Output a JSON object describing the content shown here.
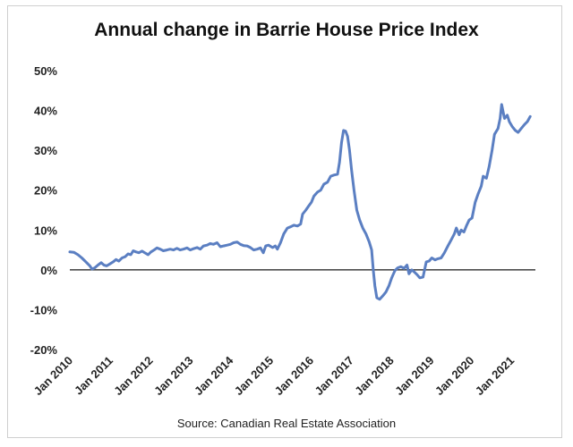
{
  "chart_data": {
    "type": "line",
    "title": "Annual change in Barrie House Price Index",
    "source": "Source: Canadian Real Estate Association",
    "xlabel": "",
    "ylabel": "",
    "ylim": [
      -0.2,
      0.5
    ],
    "xlim": [
      2010,
      2021.6
    ],
    "yticks": [
      {
        "value": 0.5,
        "label": "50%"
      },
      {
        "value": 0.4,
        "label": "40%"
      },
      {
        "value": 0.3,
        "label": "30%"
      },
      {
        "value": 0.2,
        "label": "20%"
      },
      {
        "value": 0.1,
        "label": "10%"
      },
      {
        "value": 0.0,
        "label": "0%"
      },
      {
        "value": -0.1,
        "label": "-10%"
      },
      {
        "value": -0.2,
        "label": "-20%"
      }
    ],
    "xticks": [
      {
        "value": 2010,
        "label": "Jan 2010"
      },
      {
        "value": 2011,
        "label": "Jan 2011"
      },
      {
        "value": 2012,
        "label": "Jan 2012"
      },
      {
        "value": 2013,
        "label": "Jan 2013"
      },
      {
        "value": 2014,
        "label": "Jan 2014"
      },
      {
        "value": 2015,
        "label": "Jan 2015"
      },
      {
        "value": 2016,
        "label": "Jan 2016"
      },
      {
        "value": 2017,
        "label": "Jan 2017"
      },
      {
        "value": 2018,
        "label": "Jan 2018"
      },
      {
        "value": 2019,
        "label": "Jan 2019"
      },
      {
        "value": 2020,
        "label": "Jan 2020"
      },
      {
        "value": 2021,
        "label": "Jan 2021"
      }
    ],
    "series": [
      {
        "name": "Annual change",
        "color": "#5b7fc2",
        "points": [
          [
            2010.0,
            0.045
          ],
          [
            2010.1,
            0.044
          ],
          [
            2010.2,
            0.038
          ],
          [
            2010.3,
            0.03
          ],
          [
            2010.4,
            0.02
          ],
          [
            2010.5,
            0.01
          ],
          [
            2010.55,
            0.002
          ],
          [
            2010.62,
            0.005
          ],
          [
            2010.7,
            0.012
          ],
          [
            2010.78,
            0.018
          ],
          [
            2010.85,
            0.012
          ],
          [
            2010.92,
            0.01
          ],
          [
            2011.0,
            0.015
          ],
          [
            2011.08,
            0.02
          ],
          [
            2011.15,
            0.026
          ],
          [
            2011.22,
            0.022
          ],
          [
            2011.3,
            0.03
          ],
          [
            2011.38,
            0.033
          ],
          [
            2011.45,
            0.04
          ],
          [
            2011.52,
            0.038
          ],
          [
            2011.58,
            0.048
          ],
          [
            2011.65,
            0.045
          ],
          [
            2011.72,
            0.043
          ],
          [
            2011.8,
            0.047
          ],
          [
            2011.88,
            0.042
          ],
          [
            2011.95,
            0.038
          ],
          [
            2012.02,
            0.045
          ],
          [
            2012.1,
            0.05
          ],
          [
            2012.17,
            0.055
          ],
          [
            2012.25,
            0.052
          ],
          [
            2012.33,
            0.048
          ],
          [
            2012.42,
            0.05
          ],
          [
            2012.5,
            0.052
          ],
          [
            2012.58,
            0.05
          ],
          [
            2012.67,
            0.054
          ],
          [
            2012.75,
            0.05
          ],
          [
            2012.83,
            0.052
          ],
          [
            2012.92,
            0.055
          ],
          [
            2013.0,
            0.05
          ],
          [
            2013.08,
            0.053
          ],
          [
            2013.17,
            0.056
          ],
          [
            2013.25,
            0.052
          ],
          [
            2013.33,
            0.06
          ],
          [
            2013.42,
            0.062
          ],
          [
            2013.5,
            0.066
          ],
          [
            2013.58,
            0.064
          ],
          [
            2013.67,
            0.068
          ],
          [
            2013.75,
            0.058
          ],
          [
            2013.83,
            0.06
          ],
          [
            2013.92,
            0.062
          ],
          [
            2014.0,
            0.064
          ],
          [
            2014.08,
            0.068
          ],
          [
            2014.17,
            0.07
          ],
          [
            2014.25,
            0.064
          ],
          [
            2014.33,
            0.061
          ],
          [
            2014.42,
            0.06
          ],
          [
            2014.5,
            0.056
          ],
          [
            2014.58,
            0.05
          ],
          [
            2014.67,
            0.052
          ],
          [
            2014.75,
            0.055
          ],
          [
            2014.82,
            0.043
          ],
          [
            2014.88,
            0.06
          ],
          [
            2014.95,
            0.062
          ],
          [
            2015.05,
            0.056
          ],
          [
            2015.12,
            0.06
          ],
          [
            2015.17,
            0.052
          ],
          [
            2015.25,
            0.068
          ],
          [
            2015.33,
            0.09
          ],
          [
            2015.42,
            0.105
          ],
          [
            2015.5,
            0.108
          ],
          [
            2015.58,
            0.112
          ],
          [
            2015.67,
            0.11
          ],
          [
            2015.75,
            0.115
          ],
          [
            2015.8,
            0.14
          ],
          [
            2015.88,
            0.15
          ],
          [
            2015.95,
            0.16
          ],
          [
            2016.02,
            0.17
          ],
          [
            2016.08,
            0.185
          ],
          [
            2016.17,
            0.195
          ],
          [
            2016.25,
            0.2
          ],
          [
            2016.33,
            0.215
          ],
          [
            2016.42,
            0.22
          ],
          [
            2016.5,
            0.235
          ],
          [
            2016.58,
            0.238
          ],
          [
            2016.67,
            0.24
          ],
          [
            2016.72,
            0.27
          ],
          [
            2016.77,
            0.32
          ],
          [
            2016.82,
            0.35
          ],
          [
            2016.87,
            0.348
          ],
          [
            2016.92,
            0.335
          ],
          [
            2016.97,
            0.3
          ],
          [
            2017.02,
            0.25
          ],
          [
            2017.08,
            0.2
          ],
          [
            2017.15,
            0.15
          ],
          [
            2017.22,
            0.125
          ],
          [
            2017.3,
            0.105
          ],
          [
            2017.38,
            0.09
          ],
          [
            2017.46,
            0.07
          ],
          [
            2017.52,
            0.05
          ],
          [
            2017.56,
            0.0
          ],
          [
            2017.6,
            -0.04
          ],
          [
            2017.65,
            -0.07
          ],
          [
            2017.72,
            -0.074
          ],
          [
            2017.8,
            -0.065
          ],
          [
            2017.88,
            -0.055
          ],
          [
            2017.95,
            -0.04
          ],
          [
            2018.02,
            -0.02
          ],
          [
            2018.1,
            -0.002
          ],
          [
            2018.17,
            0.005
          ],
          [
            2018.25,
            0.008
          ],
          [
            2018.33,
            0.004
          ],
          [
            2018.4,
            0.012
          ],
          [
            2018.45,
            -0.01
          ],
          [
            2018.52,
            0.0
          ],
          [
            2018.58,
            -0.005
          ],
          [
            2018.65,
            -0.012
          ],
          [
            2018.72,
            -0.02
          ],
          [
            2018.8,
            -0.018
          ],
          [
            2018.88,
            0.02
          ],
          [
            2018.95,
            0.022
          ],
          [
            2019.02,
            0.03
          ],
          [
            2019.1,
            0.025
          ],
          [
            2019.17,
            0.028
          ],
          [
            2019.25,
            0.03
          ],
          [
            2019.33,
            0.042
          ],
          [
            2019.42,
            0.06
          ],
          [
            2019.5,
            0.075
          ],
          [
            2019.58,
            0.09
          ],
          [
            2019.63,
            0.105
          ],
          [
            2019.7,
            0.088
          ],
          [
            2019.75,
            0.1
          ],
          [
            2019.82,
            0.095
          ],
          [
            2019.88,
            0.11
          ],
          [
            2019.95,
            0.125
          ],
          [
            2020.02,
            0.13
          ],
          [
            2020.1,
            0.17
          ],
          [
            2020.17,
            0.19
          ],
          [
            2020.25,
            0.21
          ],
          [
            2020.3,
            0.235
          ],
          [
            2020.38,
            0.23
          ],
          [
            2020.45,
            0.26
          ],
          [
            2020.52,
            0.3
          ],
          [
            2020.58,
            0.34
          ],
          [
            2020.67,
            0.355
          ],
          [
            2020.72,
            0.38
          ],
          [
            2020.76,
            0.415
          ],
          [
            2020.83,
            0.38
          ],
          [
            2020.9,
            0.388
          ],
          [
            2020.95,
            0.372
          ],
          [
            2021.02,
            0.36
          ],
          [
            2021.1,
            0.35
          ],
          [
            2021.17,
            0.345
          ],
          [
            2021.25,
            0.355
          ],
          [
            2021.33,
            0.365
          ],
          [
            2021.4,
            0.372
          ],
          [
            2021.47,
            0.385
          ]
        ]
      }
    ]
  }
}
